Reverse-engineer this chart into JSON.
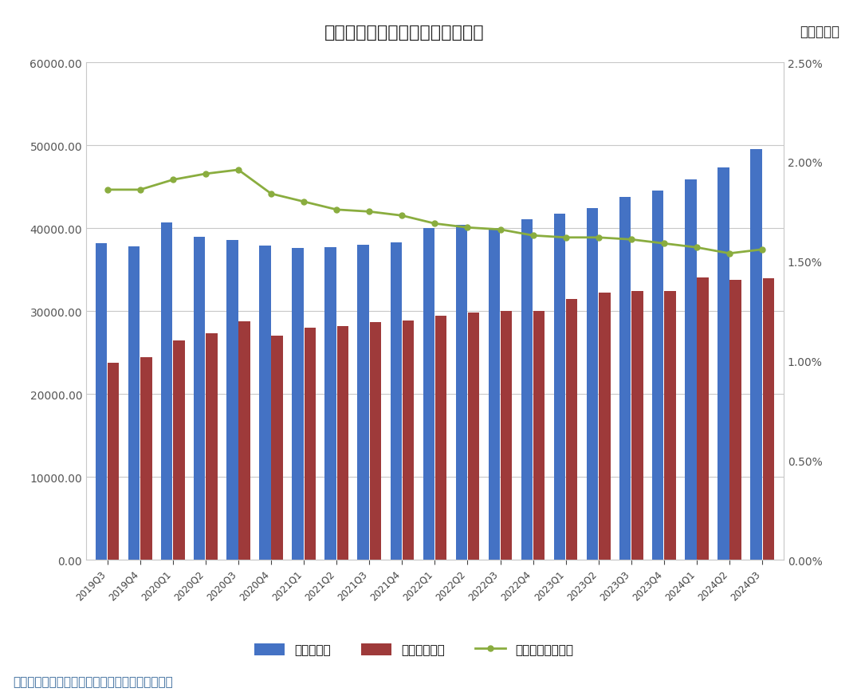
{
  "title": "图２：全国商业银行信贷资产质量",
  "unit_label": "单位：亿元",
  "source_label": "数据来源：国家金融监督管理总局，联合资信整理",
  "categories": [
    "2019Q3",
    "2019Q4",
    "2020Q1",
    "2020Q2",
    "2020Q3",
    "2020Q4",
    "2021Q1",
    "2021Q2",
    "2021Q3",
    "2021Q4",
    "2022Q1",
    "2022Q2",
    "2022Q3",
    "2022Q4",
    "2023Q1",
    "2023Q2",
    "2023Q3",
    "2023Q4",
    "2024Q1",
    "2024Q2",
    "2024Q3"
  ],
  "guanzhu": [
    38200,
    37800,
    40700,
    39000,
    38600,
    37900,
    37600,
    37700,
    38000,
    38300,
    40000,
    40400,
    40000,
    41100,
    41700,
    42400,
    43800,
    44500,
    45900,
    47300,
    49500
  ],
  "buliangyu": [
    23800,
    24400,
    26500,
    27300,
    28800,
    27000,
    28000,
    28200,
    28700,
    28900,
    29400,
    29800,
    30000,
    30000,
    31500,
    32200,
    32400,
    32400,
    34100,
    33800,
    34000
  ],
  "bulianglv_pct": [
    1.86,
    1.86,
    1.91,
    1.94,
    1.96,
    1.84,
    1.8,
    1.76,
    1.75,
    1.73,
    1.69,
    1.67,
    1.66,
    1.63,
    1.62,
    1.62,
    1.61,
    1.59,
    1.57,
    1.54,
    1.56
  ],
  "bar_blue": "#4472C4",
  "bar_red": "#9E3A3A",
  "line_green": "#8AAD3F",
  "legend_labels": [
    "关注类贷款",
    "不良贷款余额",
    "不良贷款率（右）"
  ],
  "ylim_left": [
    0,
    60000
  ],
  "ylim_right": [
    0.0,
    2.5
  ],
  "yticks_left": [
    0,
    10000,
    20000,
    30000,
    40000,
    50000,
    60000
  ],
  "yticks_right": [
    0.0,
    0.5,
    1.0,
    1.5,
    2.0,
    2.5
  ],
  "background_color": "#FFFFFF",
  "grid_color": "#C8C8C8",
  "title_fontsize": 16,
  "tick_fontsize": 10,
  "source_fontsize": 11,
  "legend_fontsize": 11
}
